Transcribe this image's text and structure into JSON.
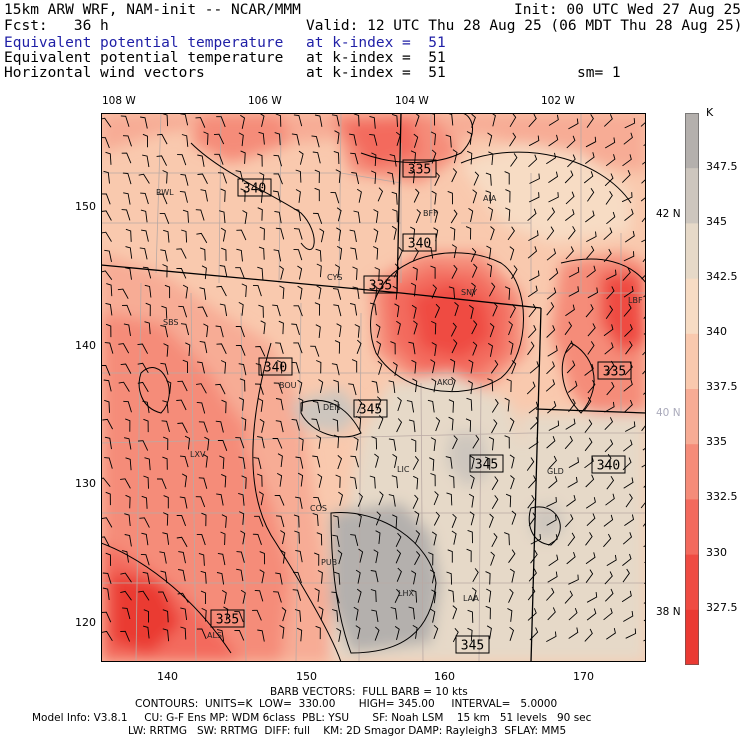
{
  "header": {
    "model": "15km ARW WRF, NAM-init -- NCAR/MMM",
    "init": "Init: 00 UTC Wed 27 Aug 25",
    "fcst": "Fcst:   36 h",
    "valid": "Valid: 12 UTC Thu 28 Aug 25 (06 MDT Thu 28 Aug 25)",
    "field1": "Equivalent potential temperature",
    "field1_level": "at k-index =  51",
    "field2": "Equivalent potential temperature",
    "field2_level": "at k-index =  51",
    "field3": "Horizontal wind vectors",
    "field3_level": "at k-index =  51",
    "smoothing": "sm= 1"
  },
  "map": {
    "lon_labels": [
      "108 W",
      "106 W",
      "104 W",
      "102 W"
    ],
    "lat_labels": [
      "42 N",
      "40 N",
      "38 N"
    ],
    "x_ticks": [
      "140",
      "150",
      "160",
      "170"
    ],
    "y_ticks": [
      "150",
      "140",
      "130",
      "120"
    ],
    "stations": [
      "RWL",
      "BFF",
      "AIA",
      "CYS",
      "SNY",
      "SBS",
      "BOU",
      "DEN",
      "AKO",
      "LXV",
      "LIC",
      "GLD",
      "COS",
      "PUB",
      "LHX",
      "LAA",
      "ALS",
      "LBF"
    ],
    "contour_labels": [
      "340",
      "335",
      "340",
      "335",
      "340",
      "345",
      "345",
      "340",
      "335",
      "335",
      "345"
    ]
  },
  "colorbar": {
    "unit": "K",
    "levels": [
      "347.5",
      "345",
      "342.5",
      "340",
      "337.5",
      "335",
      "332.5",
      "330",
      "327.5"
    ],
    "colors": [
      "#b4b0ad",
      "#cdc6be",
      "#e6d9c8",
      "#f7dcc4",
      "#f9c9ae",
      "#f7ac95",
      "#f58c79",
      "#f36a5d",
      "#ef4b42",
      "#ea3a33"
    ]
  },
  "footer": {
    "barb": "BARB VECTORS:  FULL BARB = 10 kts",
    "contours": "CONTOURS:  UNITS=K  LOW=  330.00       HIGH= 345.00     INTERVAL=   5.0000",
    "model_info": "Model Info: V3.8.1     CU: G-F Ens MP: WDM 6class  PBL: YSU       SF: Noah LSM    15 km   51 levels   90 sec",
    "physics": "LW: RRTMG   SW: RRTMG  DIFF: full    KM: 2D Smagor DAMP: Rayleigh3  SFLAY: MM5"
  }
}
